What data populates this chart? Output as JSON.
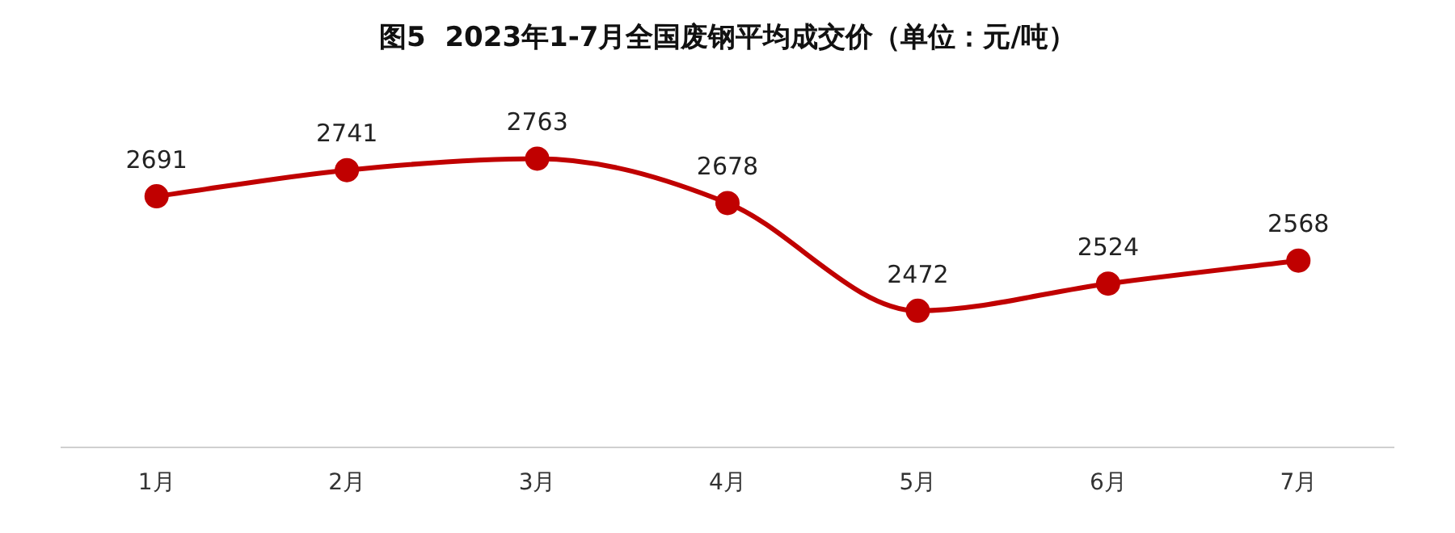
{
  "chart_data": {
    "type": "line",
    "title": "图5  2023年1-7月全国废钢平均成交价（单位：元/吨）",
    "categories": [
      "1月",
      "2月",
      "3月",
      "4月",
      "5月",
      "6月",
      "7月"
    ],
    "series": [
      {
        "color": "#c00000",
        "values": [
          2691,
          2741,
          2763,
          2678,
          2472,
          2524,
          2568
        ]
      }
    ],
    "data_labels": true,
    "marker": "circle",
    "line_style": "solid",
    "grid": false,
    "legend": false,
    "tick_labels": "x"
  }
}
